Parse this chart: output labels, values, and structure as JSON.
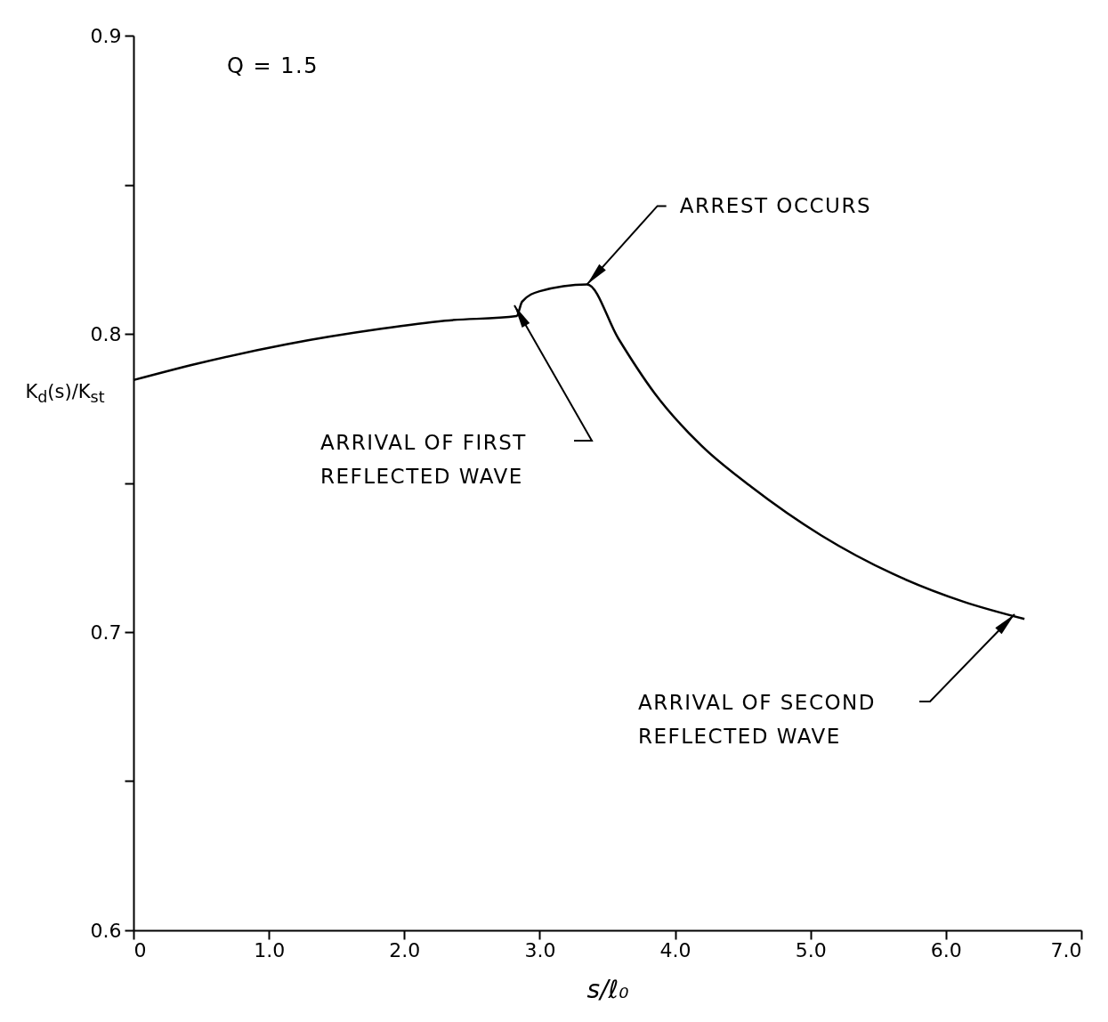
{
  "chart_data": {
    "type": "line",
    "xlabel": "s/ℓ₀",
    "ylabel": "K$_{d}$(s)/K$_{st}$",
    "color": "#000000",
    "marker": "none",
    "line_style": "solid",
    "grid": false,
    "x": [
      0,
      0.47,
      1.13,
      1.83,
      2.3,
      2.83,
      2.87,
      3.0,
      3.35,
      3.58,
      3.85,
      4.19,
      4.56,
      5.08,
      5.61,
      6.13,
      6.58
    ],
    "values": [
      0.7845,
      0.79,
      0.7965,
      0.8017,
      0.8044,
      0.806,
      0.8108,
      0.8143,
      0.8166,
      0.7985,
      0.78,
      0.7627,
      0.7488,
      0.7324,
      0.7195,
      0.7102,
      0.7044
    ],
    "xlim": [
      0,
      7
    ],
    "ylim": [
      0.6,
      0.9
    ],
    "xticks": [
      0,
      {
        "value": 1,
        "label": "1.0"
      },
      {
        "value": 2,
        "label": "2.0"
      },
      {
        "value": 3,
        "label": "3.0"
      },
      {
        "value": 4,
        "label": "4.0"
      },
      {
        "value": 5,
        "label": "5.0"
      },
      {
        "value": 6,
        "label": "6.0"
      },
      {
        "value": 7,
        "label": "7.0"
      }
    ],
    "yticks": [
      0.6,
      {
        "value": 0.65,
        "label": null
      },
      0.7,
      {
        "value": 0.75,
        "label": null
      },
      0.8,
      {
        "value": 0.85,
        "label": null
      },
      0.9
    ],
    "annotations": [
      "Q = 1.5",
      {
        "text": "ARREST OCCURS",
        "x": 3.35,
        "y": 0.8166
      },
      "ARRIVAL OF FIRST\nREFLECTED WAVE",
      "ARRIVAL OF SECOND\nREFLECTED WAVE"
    ]
  }
}
